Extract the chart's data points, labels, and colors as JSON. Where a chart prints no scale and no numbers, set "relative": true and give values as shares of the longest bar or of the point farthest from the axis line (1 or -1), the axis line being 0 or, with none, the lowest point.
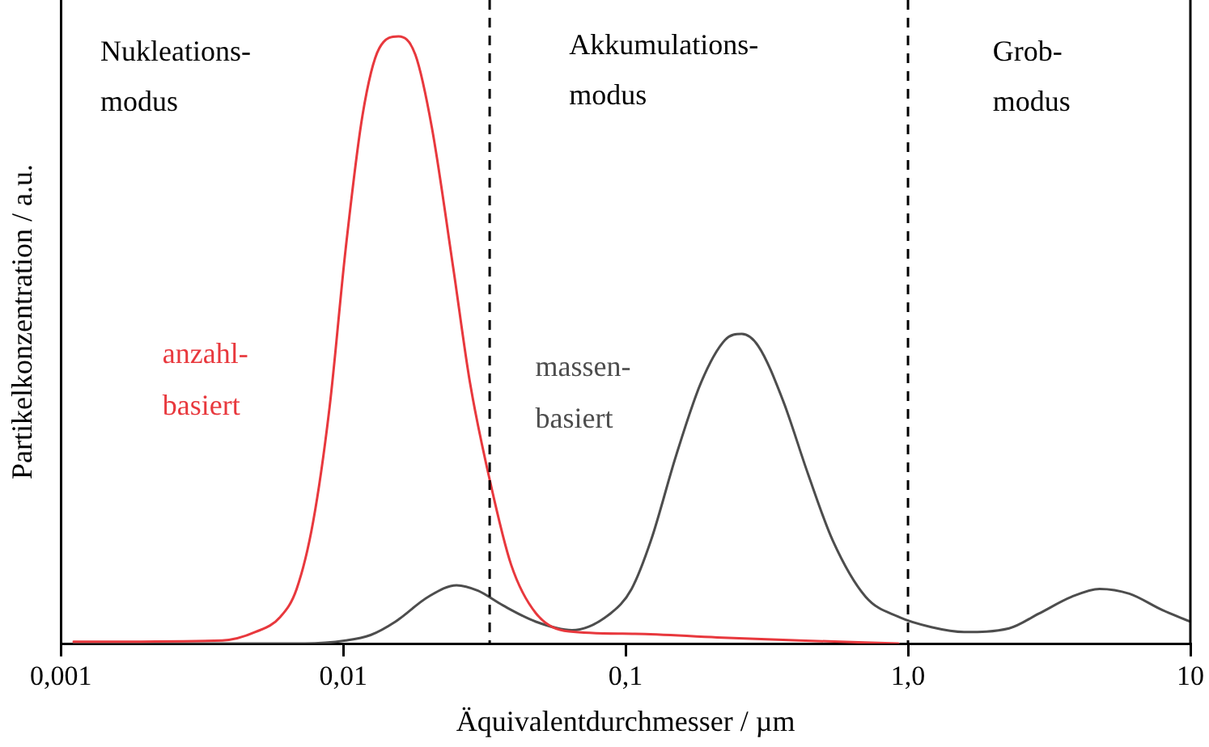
{
  "chart_data": {
    "type": "line",
    "relative": true,
    "log": "x",
    "xlabel": "Äquivalentdurchmesser / µm",
    "ylabel": "Partikelkonzentration / a.u.",
    "xlim": [
      0.001,
      10
    ],
    "xticks": [
      {
        "value": 0.001,
        "label": "0,001"
      },
      {
        "value": 0.01,
        "label": "0,01"
      },
      {
        "value": 0.1,
        "label": "0,1"
      },
      {
        "value": 1,
        "label": "1,0"
      },
      10
    ],
    "grid": false,
    "legend": false,
    "marker": "none",
    "line_style": "solid",
    "series": [
      {
        "name": "anzahl-basiert",
        "color": "#e8383d",
        "x": [
          0.00111,
          0.00373,
          0.00489,
          0.00599,
          0.00684,
          0.00782,
          0.00895,
          0.0102,
          0.0117,
          0.0134,
          0.0157,
          0.018,
          0.0206,
          0.0245,
          0.0281,
          0.033,
          0.0393,
          0.0481,
          0.063,
          0.108,
          0.211,
          0.413,
          0.925
        ],
        "values": [
          0.003,
          0.005,
          0.019,
          0.044,
          0.09,
          0.2,
          0.39,
          0.65,
          0.87,
          0.98,
          1,
          0.97,
          0.85,
          0.62,
          0.43,
          0.27,
          0.13,
          0.05,
          0.02,
          0.016,
          0.01,
          0.005,
          0
        ]
      },
      {
        "name": "massen-basiert",
        "color": "#4d4d4d",
        "x": [
          0.00111,
          0.00731,
          0.0102,
          0.0125,
          0.0153,
          0.02,
          0.0252,
          0.03,
          0.0367,
          0.0481,
          0.0646,
          0.0881,
          0.105,
          0.123,
          0.151,
          0.185,
          0.225,
          0.258,
          0.295,
          0.361,
          0.442,
          0.541,
          0.708,
          0.925,
          1.21,
          1.58,
          2.28,
          2.9,
          3.8,
          4.77,
          6.08,
          7.96,
          10
        ],
        "values": [
          0,
          0,
          0.005,
          0.014,
          0.036,
          0.077,
          0.096,
          0.087,
          0.063,
          0.036,
          0.022,
          0.049,
          0.09,
          0.17,
          0.31,
          0.43,
          0.5,
          0.51,
          0.49,
          0.4,
          0.28,
          0.17,
          0.077,
          0.044,
          0.027,
          0.019,
          0.025,
          0.049,
          0.077,
          0.09,
          0.082,
          0.055,
          0.036
        ]
      }
    ],
    "ref_lines": [
      {
        "axis": "x",
        "value": 0.033,
        "line_style": "dashed",
        "color": "#000000"
      },
      {
        "axis": "x",
        "value": 1,
        "line_style": "dashed",
        "color": "#000000"
      }
    ],
    "annotations": [
      "Nukleations-modus",
      "Akkumulations-modus",
      "Grob-modus"
    ]
  }
}
